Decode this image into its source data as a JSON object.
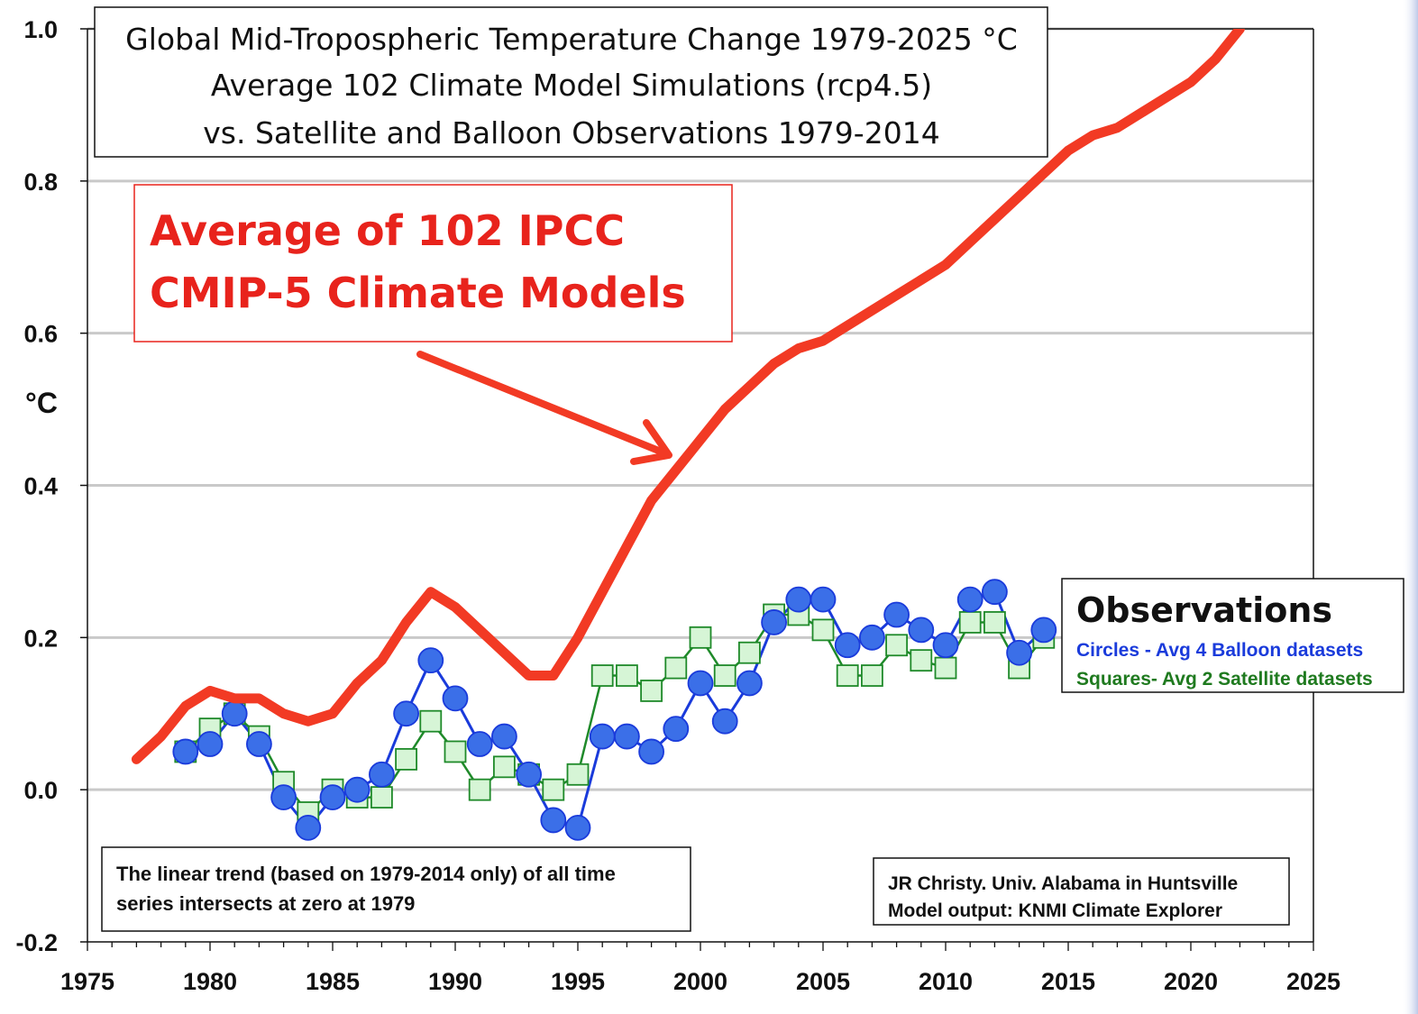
{
  "chart_data": {
    "type": "line",
    "title": [
      "Global Mid-Tropospheric Temperature Change 1979-2025 °C",
      "Average 102 Climate Model Simulations (rcp4.5)",
      "vs. Satellite and Balloon Observations 1979-2014"
    ],
    "xlabel": "",
    "ylabel": "°C",
    "xlim": [
      1975,
      2025
    ],
    "ylim": [
      -0.2,
      1.0
    ],
    "x_ticks": [
      "1975",
      "1980",
      "1985",
      "1990",
      "1995",
      "2000",
      "2005",
      "2010",
      "2015",
      "2020",
      "2025"
    ],
    "y_ticks": [
      "1.0",
      "0.8",
      "0.6",
      "0.4",
      "0.2",
      "0.0",
      "-0.2"
    ],
    "grid": true,
    "series": [
      {
        "name": "Average of 102 IPCC CMIP-5 Climate Models",
        "style": "thick-line",
        "color": "#f23a24",
        "x": [
          1977,
          1978,
          1979,
          1980,
          1981,
          1982,
          1983,
          1984,
          1985,
          1986,
          1987,
          1988,
          1989,
          1990,
          1991,
          1992,
          1993,
          1994,
          1995,
          1996,
          1997,
          1998,
          1999,
          2000,
          2001,
          2002,
          2003,
          2004,
          2005,
          2006,
          2007,
          2008,
          2009,
          2010,
          2011,
          2012,
          2013,
          2014,
          2015,
          2016,
          2017,
          2018,
          2019,
          2020,
          2021,
          2022
        ],
        "values": [
          0.04,
          0.07,
          0.11,
          0.13,
          0.12,
          0.12,
          0.1,
          0.09,
          0.1,
          0.14,
          0.17,
          0.22,
          0.26,
          0.24,
          0.21,
          0.18,
          0.15,
          0.15,
          0.2,
          0.26,
          0.32,
          0.38,
          0.42,
          0.46,
          0.5,
          0.53,
          0.56,
          0.58,
          0.59,
          0.61,
          0.63,
          0.65,
          0.67,
          0.69,
          0.72,
          0.75,
          0.78,
          0.81,
          0.84,
          0.86,
          0.87,
          0.89,
          0.91,
          0.93,
          0.96,
          1.0
        ]
      },
      {
        "name": "Circles - Avg 4 Balloon datasets",
        "style": "line-circle",
        "color": "#1a3bdb",
        "fill": "#3b6fe8",
        "x": [
          1979,
          1980,
          1981,
          1982,
          1983,
          1984,
          1985,
          1986,
          1987,
          1988,
          1989,
          1990,
          1991,
          1992,
          1993,
          1994,
          1995,
          1996,
          1997,
          1998,
          1999,
          2000,
          2001,
          2002,
          2003,
          2004,
          2005,
          2006,
          2007,
          2008,
          2009,
          2010,
          2011,
          2012,
          2013,
          2014
        ],
        "values": [
          0.05,
          0.06,
          0.1,
          0.06,
          -0.01,
          -0.05,
          -0.01,
          0.0,
          0.02,
          0.1,
          0.17,
          0.12,
          0.06,
          0.07,
          0.02,
          -0.04,
          -0.05,
          0.07,
          0.07,
          0.05,
          0.08,
          0.14,
          0.09,
          0.14,
          0.22,
          0.25,
          0.25,
          0.19,
          0.2,
          0.23,
          0.21,
          0.19,
          0.25,
          0.26,
          0.18,
          0.21
        ]
      },
      {
        "name": "Squares- Avg 2 Satellite datasets",
        "style": "line-square",
        "color": "#1f8a2a",
        "fill": "#d6f5d6",
        "x": [
          1979,
          1980,
          1981,
          1982,
          1983,
          1984,
          1985,
          1986,
          1987,
          1988,
          1989,
          1990,
          1991,
          1992,
          1993,
          1994,
          1995,
          1996,
          1997,
          1998,
          1999,
          2000,
          2001,
          2002,
          2003,
          2004,
          2005,
          2006,
          2007,
          2008,
          2009,
          2010,
          2011,
          2012,
          2013,
          2014
        ],
        "values": [
          0.05,
          0.08,
          0.1,
          0.07,
          0.01,
          -0.03,
          0.0,
          -0.01,
          -0.01,
          0.04,
          0.09,
          0.05,
          0.0,
          0.03,
          0.02,
          0.0,
          0.02,
          0.15,
          0.15,
          0.13,
          0.16,
          0.2,
          0.15,
          0.18,
          0.23,
          0.23,
          0.21,
          0.15,
          0.15,
          0.19,
          0.17,
          0.16,
          0.22,
          0.22,
          0.16,
          0.2
        ]
      }
    ],
    "callout": {
      "lines": [
        "Average of 102 IPCC",
        "CMIP-5 Climate Models"
      ],
      "color": "#e8231c"
    },
    "legend": {
      "position": "right",
      "title": "Observations",
      "entries": [
        {
          "text": "Circles - Avg 4 Balloon datasets",
          "color": "#1a3bdb"
        },
        {
          "text": "Squares- Avg 2 Satellite datasets",
          "color": "#1f7a1f"
        }
      ]
    },
    "annotations": [
      {
        "lines": [
          "The linear trend (based on 1979-2014 only) of all time",
          "series intersects at zero at 1979"
        ],
        "position": "bottom-left"
      },
      {
        "lines": [
          "JR Christy. Univ. Alabama in Huntsville",
          "Model output: KNMI Climate Explorer"
        ],
        "position": "bottom-right"
      }
    ]
  }
}
